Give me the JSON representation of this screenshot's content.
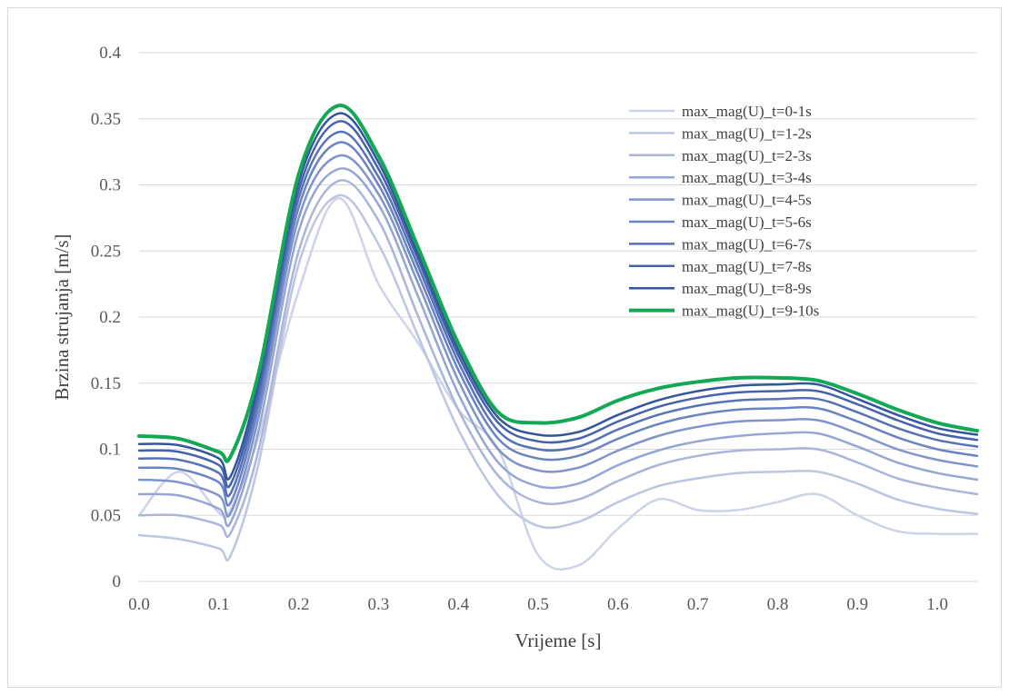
{
  "chart_data": {
    "type": "line",
    "title": "",
    "xlabel": "Vrijeme [s]",
    "ylabel": "Brzina strujanja [m/s]",
    "xlim": [
      0,
      1.05
    ],
    "ylim": [
      0,
      0.4
    ],
    "x_ticks": [
      "0.0",
      "0.1",
      "0.2",
      "0.3",
      "0.4",
      "0.5",
      "0.6",
      "0.7",
      "0.8",
      "0.9",
      "1.0"
    ],
    "y_ticks": [
      "0",
      "0.05",
      "0.1",
      "0.15",
      "0.2",
      "0.25",
      "0.3",
      "0.35",
      "0.4"
    ],
    "grid": "horizontal",
    "legend_position": "top-right",
    "x": [
      0.0,
      0.05,
      0.1,
      0.115,
      0.15,
      0.2,
      0.25,
      0.3,
      0.35,
      0.4,
      0.45,
      0.5,
      0.55,
      0.6,
      0.65,
      0.7,
      0.75,
      0.8,
      0.85,
      0.9,
      0.95,
      1.0,
      1.05
    ],
    "series": [
      {
        "name": "max_mag(U)_t=0-1s",
        "color": "#cdd3e8",
        "width": 2.5,
        "values": [
          0.05,
          0.083,
          0.052,
          0.055,
          0.11,
          0.22,
          0.29,
          0.225,
          0.18,
          0.13,
          0.1,
          0.02,
          0.012,
          0.04,
          0.062,
          0.054,
          0.054,
          0.06,
          0.066,
          0.05,
          0.038,
          0.036,
          0.036
        ]
      },
      {
        "name": "max_mag(U)_t=1-2s",
        "color": "#bcc5e2",
        "width": 2.5,
        "values": [
          0.035,
          0.032,
          0.025,
          0.02,
          0.09,
          0.24,
          0.292,
          0.255,
          0.185,
          0.115,
          0.065,
          0.042,
          0.045,
          0.06,
          0.072,
          0.078,
          0.082,
          0.083,
          0.083,
          0.074,
          0.062,
          0.055,
          0.051
        ]
      },
      {
        "name": "max_mag(U)_t=2-3s",
        "color": "#a9b5db",
        "width": 2.5,
        "values": [
          0.05,
          0.05,
          0.043,
          0.037,
          0.1,
          0.25,
          0.303,
          0.273,
          0.2,
          0.13,
          0.08,
          0.06,
          0.062,
          0.076,
          0.088,
          0.095,
          0.099,
          0.1,
          0.1,
          0.09,
          0.078,
          0.071,
          0.066
        ]
      },
      {
        "name": "max_mag(U)_t=3-4s",
        "color": "#95a6d4",
        "width": 2.5,
        "values": [
          0.066,
          0.065,
          0.055,
          0.045,
          0.115,
          0.265,
          0.312,
          0.285,
          0.215,
          0.142,
          0.09,
          0.072,
          0.074,
          0.088,
          0.099,
          0.106,
          0.11,
          0.112,
          0.112,
          0.102,
          0.09,
          0.082,
          0.077
        ]
      },
      {
        "name": "max_mag(U)_t=4-5s",
        "color": "#7f94cb",
        "width": 2.5,
        "values": [
          0.077,
          0.075,
          0.065,
          0.052,
          0.125,
          0.275,
          0.322,
          0.293,
          0.225,
          0.152,
          0.1,
          0.084,
          0.086,
          0.099,
          0.11,
          0.117,
          0.121,
          0.122,
          0.122,
          0.112,
          0.1,
          0.092,
          0.087
        ]
      },
      {
        "name": "max_mag(U)_t=5-6s",
        "color": "#6a83c2",
        "width": 2.5,
        "values": [
          0.086,
          0.085,
          0.075,
          0.06,
          0.133,
          0.283,
          0.332,
          0.3,
          0.232,
          0.16,
          0.108,
          0.093,
          0.095,
          0.108,
          0.119,
          0.126,
          0.13,
          0.131,
          0.131,
          0.121,
          0.109,
          0.1,
          0.095
        ]
      },
      {
        "name": "max_mag(U)_t=6-7s",
        "color": "#5572b8",
        "width": 2.5,
        "values": [
          0.093,
          0.092,
          0.082,
          0.067,
          0.14,
          0.29,
          0.34,
          0.306,
          0.238,
          0.166,
          0.114,
          0.1,
          0.102,
          0.115,
          0.126,
          0.133,
          0.137,
          0.138,
          0.138,
          0.128,
          0.116,
          0.107,
          0.102
        ]
      },
      {
        "name": "max_mag(U)_t=7-8s",
        "color": "#4463ac",
        "width": 2.5,
        "values": [
          0.099,
          0.098,
          0.088,
          0.074,
          0.146,
          0.296,
          0.348,
          0.312,
          0.243,
          0.171,
          0.12,
          0.106,
          0.108,
          0.121,
          0.132,
          0.139,
          0.143,
          0.144,
          0.144,
          0.134,
          0.122,
          0.112,
          0.107
        ]
      },
      {
        "name": "max_mag(U)_t=8-9s",
        "color": "#34549d",
        "width": 2.5,
        "values": [
          0.104,
          0.103,
          0.093,
          0.08,
          0.152,
          0.302,
          0.354,
          0.317,
          0.247,
          0.175,
          0.124,
          0.111,
          0.113,
          0.126,
          0.137,
          0.144,
          0.148,
          0.149,
          0.149,
          0.138,
          0.126,
          0.116,
          0.111
        ]
      },
      {
        "name": "max_mag(U)_t=9-10s",
        "color": "#13a853",
        "width": 4,
        "values": [
          0.11,
          0.108,
          0.098,
          0.095,
          0.158,
          0.308,
          0.36,
          0.322,
          0.252,
          0.18,
          0.128,
          0.12,
          0.124,
          0.137,
          0.146,
          0.151,
          0.154,
          0.154,
          0.152,
          0.142,
          0.13,
          0.12,
          0.114
        ]
      }
    ]
  }
}
